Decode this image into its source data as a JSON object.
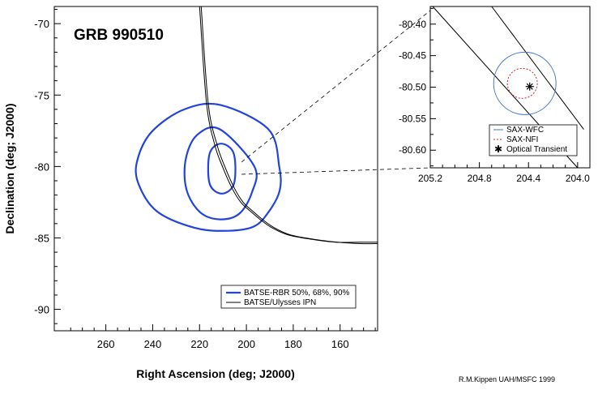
{
  "chart_data": [
    {
      "type": "line",
      "title": "GRB 990510",
      "xlabel": "Right Ascension (deg; J2000)",
      "ylabel": "Declination (deg; J2000)",
      "xlim": [
        282,
        144
      ],
      "ylim": [
        -91.5,
        -68.8
      ],
      "xticks": [
        260,
        240,
        220,
        200,
        180,
        160
      ],
      "yticks": [
        -70,
        -75,
        -80,
        -85,
        -90
      ],
      "xtick_labels": [
        "260",
        "240",
        "220",
        "200",
        "180",
        "160"
      ],
      "ytick_labels": [
        "-70",
        "-75",
        "-80",
        "-85",
        "-90"
      ],
      "legend_position": "bottom-right",
      "series": [
        {
          "name": "BATSE-RBR 50%, 68%, 90%",
          "color": "#2244dd",
          "contours": [
            {
              "level": "50%",
              "x": [
                210.8,
                205.4,
                205.3,
                210.5,
                215.7,
                215.7
              ],
              "y": [
                -78.4,
                -79.1,
                -81.2,
                -81.9,
                -81.2,
                -79.1
              ]
            },
            {
              "level": "68%",
              "x": [
                211.3,
                196.6,
                197.6,
                203.0,
                211.3,
                219.8,
                225.6,
                225.9,
                221.1
              ],
              "y": [
                -77.4,
                -80.0,
                -81.8,
                -83.3,
                -83.7,
                -83.2,
                -81.6,
                -79.5,
                -77.8
              ]
            },
            {
              "level": "90%",
              "x": [
                211.0,
                190.6,
                186.0,
                185.8,
                190.6,
                196.8,
                207.8,
                222.0,
                238.5,
                246.5,
                246.1,
                240.0,
                226.5
              ],
              "y": [
                -75.7,
                -77.4,
                -80.0,
                -81.7,
                -83.2,
                -84.2,
                -84.5,
                -84.3,
                -83.1,
                -81.0,
                -79.3,
                -77.5,
                -76.0
              ]
            }
          ]
        },
        {
          "name": "BATSE/Ulysses IPN",
          "color": "#000000",
          "annulus": [
            {
              "x": [
                220,
                217,
                213.5,
                210,
                206.2,
                202.4,
                198.5,
                194.2,
                189,
                182,
                172,
                162,
                152,
                144
              ],
              "y": [
                -68.8,
                -75.6,
                -78.5,
                -80.1,
                -81.5,
                -82.5,
                -83.1,
                -83.7,
                -84.3,
                -84.8,
                -85.1,
                -85.3,
                -85.3,
                -85.3
              ]
            },
            {
              "x": [
                219.3,
                216.3,
                212.5,
                209,
                205.2,
                201.4,
                197.5,
                193.2,
                188,
                181,
                171,
                161,
                151,
                144
              ],
              "y": [
                -68.8,
                -75.6,
                -78.5,
                -80.1,
                -81.5,
                -82.5,
                -83.1,
                -83.7,
                -84.3,
                -84.8,
                -85.1,
                -85.3,
                -85.4,
                -85.4
              ]
            }
          ]
        }
      ]
    },
    {
      "type": "line",
      "xlim": [
        205.2,
        203.9
      ],
      "ylim": [
        -80.628,
        -80.372
      ],
      "xticks": [
        205.2,
        204.8,
        204.4,
        204.0
      ],
      "yticks": [
        -80.4,
        -80.45,
        -80.5,
        -80.55,
        -80.6
      ],
      "xtick_labels": [
        "205.2",
        "204.8",
        "204.4",
        "204.0"
      ],
      "ytick_labels": [
        "-80.40",
        "-80.45",
        "-80.50",
        "-80.55",
        "-80.60"
      ],
      "legend_position": "bottom-right",
      "ipn_lines": [
        {
          "x": [
            205.18,
            204.0
          ],
          "y": [
            -80.372,
            -80.628
          ]
        },
        {
          "x": [
            204.7,
            203.95
          ],
          "y": [
            -80.372,
            -80.567
          ]
        }
      ],
      "series": [
        {
          "name": "SAX-WFC",
          "color": "#4477cc",
          "center": [
            204.43,
            -80.494
          ],
          "radius_deg_dec": 0.0495
        },
        {
          "name": "SAX-NFI",
          "color": "#dd2222",
          "center": [
            204.45,
            -80.494
          ],
          "radius_deg_dec": 0.0238
        },
        {
          "name": "Optical Transient",
          "color": "#000000",
          "x": [
            204.39
          ],
          "y": [
            -80.499
          ]
        }
      ]
    }
  ],
  "credit": "R.M.Kippen UAH/MSFC 1999"
}
